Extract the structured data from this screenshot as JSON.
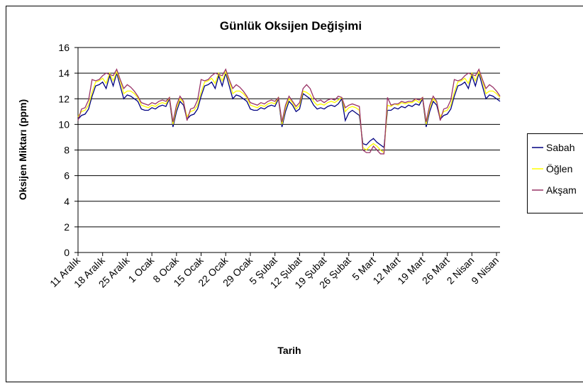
{
  "chart_data": {
    "type": "line",
    "title": "Günlük Oksijen Değişimi",
    "x_label": "Tarih",
    "y_label": "Oksijen Miktarı (ppm)",
    "categories": [
      "11 Aralık",
      null,
      null,
      null,
      null,
      null,
      null,
      "18 Aralık",
      null,
      null,
      null,
      null,
      null,
      null,
      "25 Aralık",
      null,
      null,
      null,
      null,
      null,
      null,
      "1 Ocak",
      null,
      null,
      null,
      null,
      null,
      null,
      "8 Ocak",
      null,
      null,
      null,
      null,
      null,
      null,
      "15 Ocak",
      null,
      null,
      null,
      null,
      null,
      null,
      "22 Ocak",
      null,
      null,
      null,
      null,
      null,
      null,
      "29 Ocak",
      null,
      null,
      null,
      null,
      null,
      null,
      "5 Şubat",
      null,
      null,
      null,
      null,
      null,
      null,
      "12 Şubat",
      null,
      null,
      null,
      null,
      null,
      null,
      "19 Şubat",
      null,
      null,
      null,
      null,
      null,
      null,
      "26 Şubat",
      null,
      null,
      null,
      null,
      null,
      null,
      "5 Mart",
      null,
      null,
      null,
      null,
      null,
      null,
      "12 Mart",
      null,
      null,
      null,
      null,
      null,
      null,
      "19 Mart",
      null,
      null,
      null,
      null,
      null,
      null,
      "26 Mart",
      null,
      null,
      null,
      null,
      null,
      null,
      "2 Nisan",
      null,
      null,
      null,
      null,
      null,
      null,
      "9 Nisan",
      null
    ],
    "series": [
      {
        "name": "Sabah",
        "color": "#000080",
        "values": [
          10.4,
          10.7,
          10.8,
          11.2,
          12.2,
          13.0,
          13.1,
          13.3,
          12.8,
          13.8,
          13.0,
          14.0,
          13.0,
          12.0,
          12.3,
          12.2,
          12.0,
          11.8,
          11.2,
          11.1,
          11.1,
          11.3,
          11.2,
          11.4,
          11.5,
          11.4,
          12.0,
          9.8,
          11.0,
          11.8,
          11.5,
          10.4,
          10.7,
          10.8,
          11.2,
          12.2,
          13.0,
          13.1,
          13.3,
          12.8,
          13.8,
          13.0,
          14.0,
          13.0,
          12.0,
          12.3,
          12.2,
          12.0,
          11.8,
          11.2,
          11.1,
          11.1,
          11.3,
          11.2,
          11.4,
          11.5,
          11.4,
          12.0,
          9.8,
          11.0,
          11.8,
          11.5,
          11.0,
          11.2,
          12.4,
          12.2,
          12.0,
          11.5,
          11.2,
          11.3,
          11.2,
          11.4,
          11.5,
          11.4,
          11.6,
          12.0,
          10.3,
          10.9,
          11.1,
          10.9,
          10.7,
          8.5,
          8.4,
          8.7,
          8.9,
          8.6,
          8.4,
          8.2,
          11.1,
          11.1,
          11.3,
          11.2,
          11.4,
          11.3,
          11.5,
          11.4,
          11.6,
          11.5,
          12.0,
          9.8,
          11.0,
          11.8,
          11.5,
          10.4,
          10.7,
          10.8,
          11.2,
          12.2,
          13.0,
          13.1,
          13.3,
          12.8,
          13.8,
          13.0,
          14.0,
          13.0,
          12.0,
          12.3,
          12.2,
          12.0,
          11.8
        ]
      },
      {
        "name": "Öğlen",
        "color": "#ffff00",
        "values": [
          10.6,
          11.0,
          11.1,
          11.5,
          12.5,
          13.3,
          13.4,
          13.6,
          13.2,
          14.0,
          13.4,
          14.1,
          13.4,
          12.4,
          12.6,
          12.6,
          12.4,
          12.1,
          11.5,
          11.4,
          11.3,
          11.5,
          11.4,
          11.6,
          11.7,
          11.6,
          12.1,
          10.0,
          11.3,
          12.0,
          11.7,
          10.6,
          11.0,
          11.1,
          11.5,
          12.5,
          13.3,
          13.4,
          13.6,
          13.2,
          14.0,
          13.4,
          14.1,
          13.4,
          12.4,
          12.6,
          12.6,
          12.4,
          12.1,
          11.5,
          11.4,
          11.3,
          11.5,
          11.4,
          11.6,
          11.7,
          11.6,
          12.1,
          10.0,
          11.3,
          12.0,
          11.7,
          11.2,
          11.5,
          12.6,
          12.5,
          12.3,
          11.8,
          11.5,
          11.6,
          11.5,
          11.7,
          11.8,
          11.7,
          11.9,
          12.1,
          11.0,
          11.3,
          11.4,
          11.3,
          11.1,
          8.2,
          8.0,
          8.3,
          8.5,
          8.3,
          8.0,
          7.8,
          11.5,
          11.4,
          11.6,
          11.5,
          11.7,
          11.6,
          11.7,
          11.7,
          11.9,
          11.7,
          12.1,
          10.0,
          11.3,
          12.0,
          11.7,
          10.6,
          11.0,
          11.1,
          11.5,
          12.5,
          13.3,
          13.4,
          13.6,
          13.2,
          14.0,
          13.4,
          14.1,
          13.4,
          12.4,
          12.6,
          12.6,
          12.4,
          12.1
        ]
      },
      {
        "name": "Akşam",
        "color": "#993366",
        "values": [
          10.3,
          11.2,
          11.3,
          11.9,
          13.5,
          13.4,
          13.5,
          13.8,
          14.0,
          13.9,
          13.8,
          14.3,
          13.5,
          12.8,
          13.1,
          12.9,
          12.6,
          12.2,
          11.7,
          11.6,
          11.5,
          11.7,
          11.6,
          11.8,
          11.9,
          11.8,
          12.1,
          10.2,
          11.5,
          12.2,
          11.8,
          10.3,
          11.2,
          11.3,
          11.9,
          13.5,
          13.4,
          13.5,
          13.8,
          14.0,
          13.9,
          13.8,
          14.3,
          13.5,
          12.8,
          13.1,
          12.9,
          12.6,
          12.2,
          11.7,
          11.6,
          11.5,
          11.7,
          11.6,
          11.8,
          11.9,
          11.8,
          12.1,
          10.2,
          11.5,
          12.2,
          11.8,
          11.4,
          11.7,
          12.8,
          13.1,
          12.8,
          12.1,
          11.8,
          11.9,
          11.7,
          11.9,
          12.0,
          11.9,
          12.2,
          12.1,
          11.3,
          11.5,
          11.6,
          11.5,
          11.4,
          8.0,
          7.8,
          7.8,
          8.3,
          8.0,
          7.7,
          7.7,
          12.1,
          11.5,
          11.6,
          11.6,
          11.8,
          11.7,
          11.8,
          11.8,
          12.0,
          11.9,
          12.1,
          10.2,
          11.5,
          12.2,
          11.8,
          10.3,
          11.2,
          11.3,
          11.9,
          13.5,
          13.4,
          13.5,
          13.8,
          14.0,
          13.9,
          13.8,
          14.3,
          13.5,
          12.8,
          13.1,
          12.9,
          12.6,
          12.2
        ]
      }
    ],
    "ylim": [
      0,
      16
    ],
    "yticks": [
      0,
      2,
      4,
      6,
      8,
      10,
      12,
      14,
      16
    ],
    "grid": true
  }
}
